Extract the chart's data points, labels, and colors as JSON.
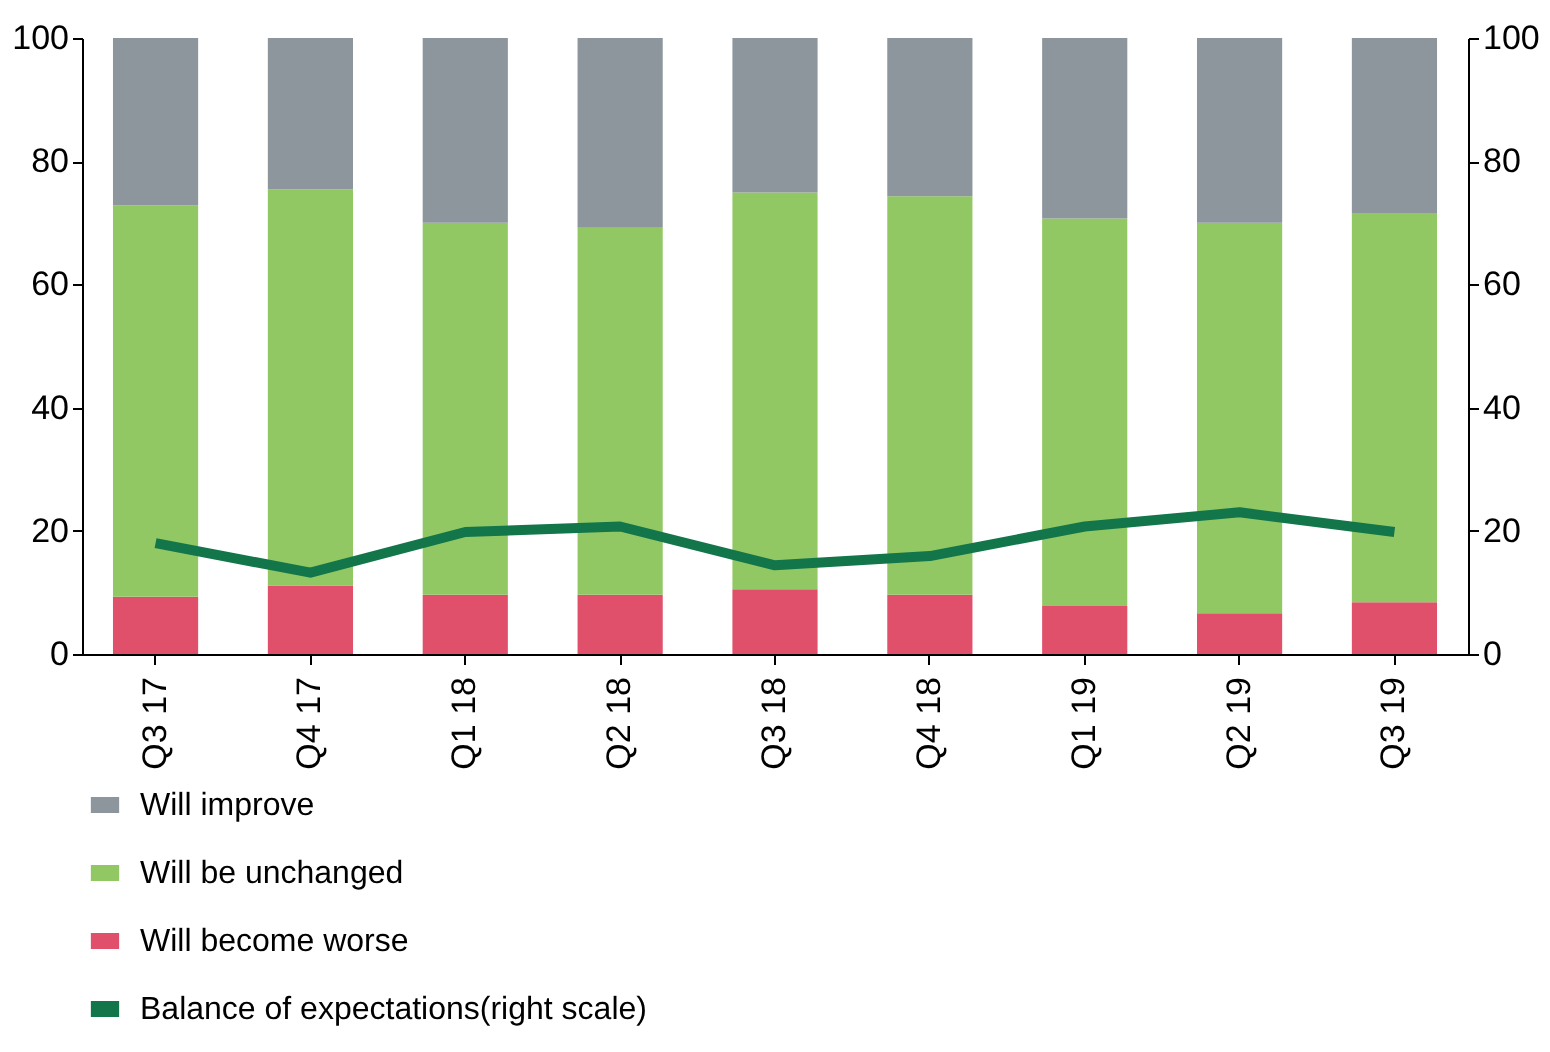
{
  "chart_data": {
    "type": "bar",
    "stacked": true,
    "categories": [
      "Q3 17",
      "Q4 17",
      "Q1 18",
      "Q2 18",
      "Q3 18",
      "Q4 18",
      "Q1 19",
      "Q2 19",
      "Q3 19"
    ],
    "series": [
      {
        "name": "Will become worse",
        "color": "#e0506a",
        "values": [
          9.3,
          11.1,
          9.6,
          9.6,
          10.5,
          9.6,
          7.8,
          6.6,
          8.4
        ]
      },
      {
        "name": "Will be unchanged",
        "color": "#92c864",
        "values": [
          63.5,
          64.3,
          60.4,
          59.6,
          64.4,
          64.7,
          62.9,
          63.4,
          63.2
        ]
      },
      {
        "name": "Will improve",
        "color": "#8c969c",
        "values": [
          27.2,
          24.6,
          30,
          30.8,
          25.1,
          25.7,
          29.3,
          30,
          28.4
        ]
      },
      {
        "name": "Balance of expectations(right scale)",
        "type": "line",
        "axis": "y2",
        "color": "#12764a",
        "values": [
          18,
          13.2,
          19.8,
          20.7,
          14.4,
          15.9,
          20.7,
          23,
          19.8
        ]
      }
    ],
    "ylim": [
      0,
      100
    ],
    "yticks": [
      0,
      20,
      40,
      60,
      80,
      100
    ],
    "y2lim": [
      0,
      100
    ],
    "y2ticks": [
      0,
      20,
      40,
      60,
      80,
      100
    ],
    "legend": "bottom",
    "grid": false
  }
}
